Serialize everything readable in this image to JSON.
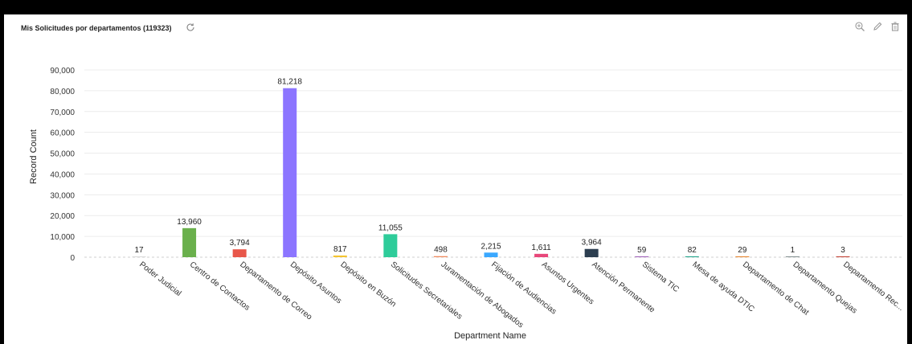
{
  "widget": {
    "title": "Mis Solicitudes por departamentos (119323)",
    "icons": {
      "refresh": "refresh-icon",
      "zoom": "zoom-icon",
      "edit": "pencil-icon",
      "delete": "trash-icon"
    }
  },
  "chart_data": {
    "type": "bar",
    "xlabel": "Department Name",
    "ylabel": "Record Count",
    "ylim": [
      0,
      90000
    ],
    "yticks": [
      "0",
      "10,000",
      "20,000",
      "30,000",
      "40,000",
      "50,000",
      "60,000",
      "70,000",
      "80,000",
      "90,000"
    ],
    "grid": true,
    "categories": [
      "Poder Judicial",
      "Centro de Contactos",
      "Departamento de Correo",
      "Depósito Asuntos",
      "Depósito en Buzón",
      "Solicitudes Secretariales",
      "Juramentación de Abogados",
      "Fijación de Audiencias",
      "Asuntos Urgentes",
      "Atención Permanente",
      "Sistema TIC",
      "Mesa de ayuda DTIC",
      "Departamento de Chat",
      "Departamento Quejas",
      "Departamento Rec..."
    ],
    "values": [
      17,
      13960,
      3794,
      81218,
      817,
      11055,
      498,
      2215,
      1611,
      3964,
      59,
      82,
      29,
      1,
      3
    ],
    "value_labels": [
      "17",
      "13,960",
      "3,794",
      "81,218",
      "817",
      "11,055",
      "498",
      "2,215",
      "1,611",
      "3,964",
      "59",
      "82",
      "29",
      "1",
      "3"
    ],
    "colors": [
      "#d9d9d9",
      "#6ab04c",
      "#e8574a",
      "#8c75ff",
      "#f4c430",
      "#2ecc9a",
      "#f08a5d",
      "#3aa8ff",
      "#e8477a",
      "#2c3e50",
      "#9b59b6",
      "#16a085",
      "#e67e22",
      "#7f8c8d",
      "#c0392b"
    ]
  }
}
